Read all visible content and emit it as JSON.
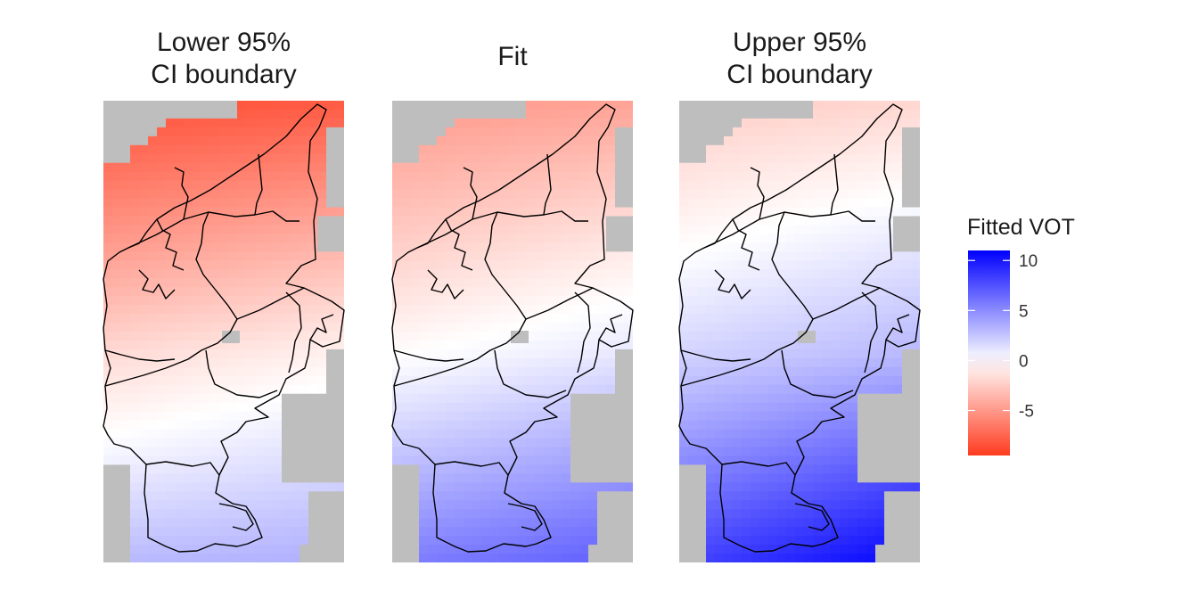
{
  "chart_data": {
    "type": "heatmap",
    "panels": [
      {
        "title_lines": [
          "Lower 95%",
          "CI boundary"
        ],
        "corner_values": {
          "northwest": -8.5,
          "northeast": -8.0,
          "middle": -1.2,
          "southwest": 3.0,
          "southeast": 3.5
        },
        "value_range": [
          -9.5,
          4.0
        ]
      },
      {
        "title_lines": [
          "Fit"
        ],
        "corner_values": {
          "northwest": -5.0,
          "northeast": -4.5,
          "middle": 0.5,
          "southwest": 5.5,
          "southeast": 7.0
        },
        "value_range": [
          -5.5,
          8.0
        ]
      },
      {
        "title_lines": [
          "Upper 95%",
          "CI boundary"
        ],
        "corner_values": {
          "northwest": -2.5,
          "northeast": -2.0,
          "middle": 2.5,
          "southwest": 8.0,
          "southeast": 11.0
        },
        "value_range": [
          -2.5,
          11.0
        ]
      }
    ],
    "legend": {
      "title": "Fitted VOT",
      "ticks": [
        10,
        5,
        0,
        -5
      ],
      "tick_labels": [
        "10",
        "5",
        "0",
        "-5"
      ],
      "scale_min": -9.5,
      "scale_max": 11.0,
      "low_color": "#ff3b1f",
      "mid_color": "#ffffff",
      "high_color": "#0000ff",
      "mid_value": 0,
      "position": "right"
    },
    "na_color": "#bebebe",
    "grid": false
  }
}
